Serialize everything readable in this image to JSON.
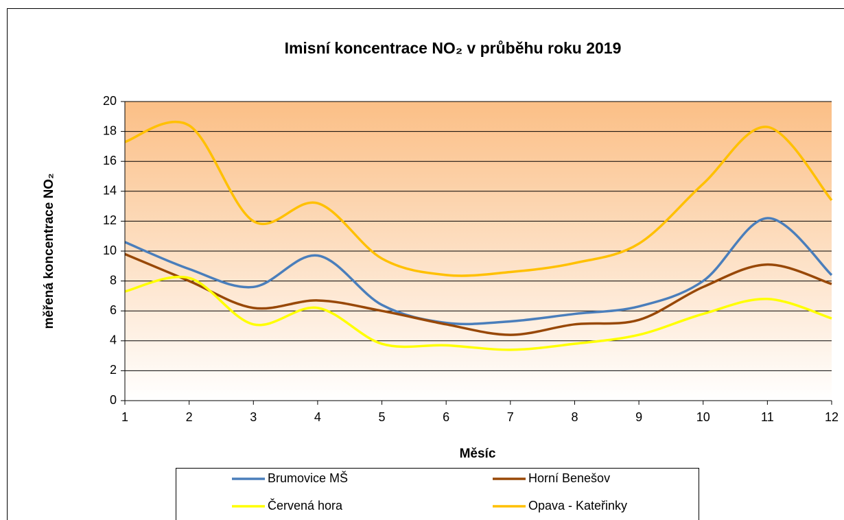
{
  "chart_data": {
    "type": "line",
    "title": "Imisní koncentrace NO₂ v průběhu roku 2019",
    "xlabel": "Měsíc",
    "ylabel": "měřená koncentrace NO₂",
    "x": [
      1,
      2,
      3,
      4,
      5,
      6,
      7,
      8,
      9,
      10,
      11,
      12
    ],
    "series": [
      {
        "name": "Brumovice MŠ",
        "color": "#4a7ebb",
        "values": [
          10.6,
          8.8,
          7.6,
          9.7,
          6.4,
          5.2,
          5.3,
          5.8,
          6.3,
          8.0,
          12.2,
          8.4
        ]
      },
      {
        "name": "Horní Benešov",
        "color": "#984807",
        "values": [
          9.8,
          8.0,
          6.2,
          6.7,
          6.0,
          5.1,
          4.4,
          5.1,
          5.4,
          7.6,
          9.1,
          7.8
        ]
      },
      {
        "name": "Červená hora",
        "color": "#ffff00",
        "values": [
          7.3,
          8.2,
          5.1,
          6.2,
          3.8,
          3.7,
          3.4,
          3.8,
          4.4,
          5.8,
          6.8,
          5.5
        ]
      },
      {
        "name": "Opava - Kateřinky",
        "color": "#ffc000",
        "values": [
          17.3,
          18.4,
          12.0,
          13.2,
          9.5,
          8.4,
          8.6,
          9.2,
          10.5,
          14.5,
          18.3,
          13.4
        ]
      }
    ],
    "xlim": [
      1,
      12
    ],
    "xticks": [
      1,
      2,
      3,
      4,
      5,
      6,
      7,
      8,
      9,
      10,
      11,
      12
    ],
    "ylim": [
      0,
      20
    ],
    "yticks": [
      0,
      2,
      4,
      6,
      8,
      10,
      12,
      14,
      16,
      18,
      20
    ],
    "grid": true,
    "legend": "bottom",
    "smooth": true
  }
}
